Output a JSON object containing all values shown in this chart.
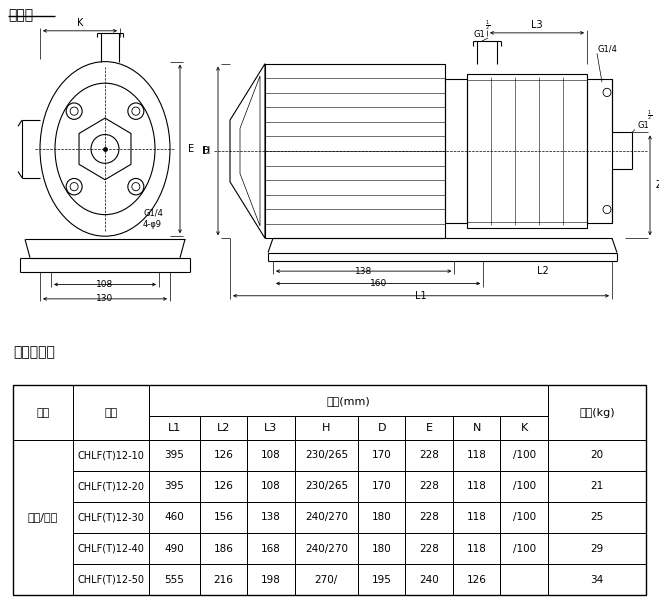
{
  "title_drawing": "安装图",
  "title_table": "尺寸和重量",
  "table_motor_col": "三相/单相",
  "col_header1": [
    "电机",
    "型号",
    "尺寸(mm)",
    "重量(kg)"
  ],
  "col_header2": [
    "L1",
    "L2",
    "L3",
    "H",
    "D",
    "E",
    "N",
    "K"
  ],
  "table_rows": [
    [
      "CHLF(T)12-10",
      "395",
      "126",
      "108",
      "230/265",
      "170",
      "228",
      "118",
      "/100",
      "20"
    ],
    [
      "CHLF(T)12-20",
      "395",
      "126",
      "108",
      "230/265",
      "170",
      "228",
      "118",
      "/100",
      "21"
    ],
    [
      "CHLF(T)12-30",
      "460",
      "156",
      "138",
      "240/270",
      "180",
      "228",
      "118",
      "/100",
      "25"
    ],
    [
      "CHLF(T)12-40",
      "490",
      "186",
      "168",
      "240/270",
      "180",
      "228",
      "118",
      "/100",
      "29"
    ],
    [
      "CHLF(T)12-50",
      "555",
      "216",
      "198",
      "270/",
      "195",
      "240",
      "126",
      "",
      "34"
    ]
  ],
  "bg_color": "#ffffff",
  "line_color": "#000000",
  "text_color": "#000000",
  "font_size_title": 10,
  "font_size_body": 7.5,
  "font_size_small": 6.5
}
